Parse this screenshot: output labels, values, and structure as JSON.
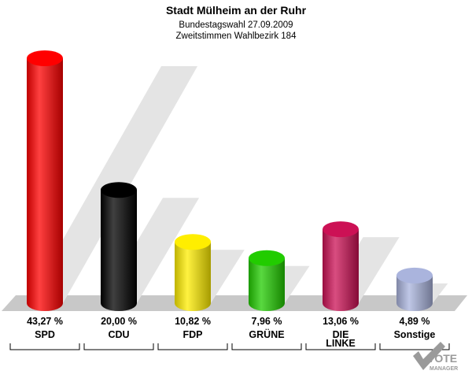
{
  "chart_data": {
    "type": "bar",
    "title": "Stadt Mülheim an der Ruhr",
    "subtitle_lines": [
      "Bundestagswahl 27.09.2009",
      "Zweitstimmen Wahlbezirk 184"
    ],
    "categories": [
      "SPD",
      "CDU",
      "FDP",
      "GRÜNE",
      "DIE LINKE",
      "Sonstige"
    ],
    "category_lines": [
      [
        "SPD"
      ],
      [
        "CDU"
      ],
      [
        "FDP"
      ],
      [
        "GRÜNE"
      ],
      [
        "DIE",
        "LINKE"
      ],
      [
        "Sonstige"
      ]
    ],
    "values": [
      43.27,
      20.0,
      10.82,
      7.96,
      13.06,
      4.89
    ],
    "value_labels": [
      "43,27 %",
      "20,00 %",
      "10,82 %",
      "7,96 %",
      "13,06 %",
      "4,89 %"
    ],
    "colors": [
      "#ff0000",
      "#000000",
      "#ffee00",
      "#22cc00",
      "#cc1155",
      "#aab4dd"
    ],
    "unit": "%",
    "ylim": [
      0,
      43.27
    ],
    "grid": false,
    "legend": "none"
  },
  "branding": {
    "logo_text_1": "VOTE",
    "logo_text_2": "MANAGER"
  }
}
